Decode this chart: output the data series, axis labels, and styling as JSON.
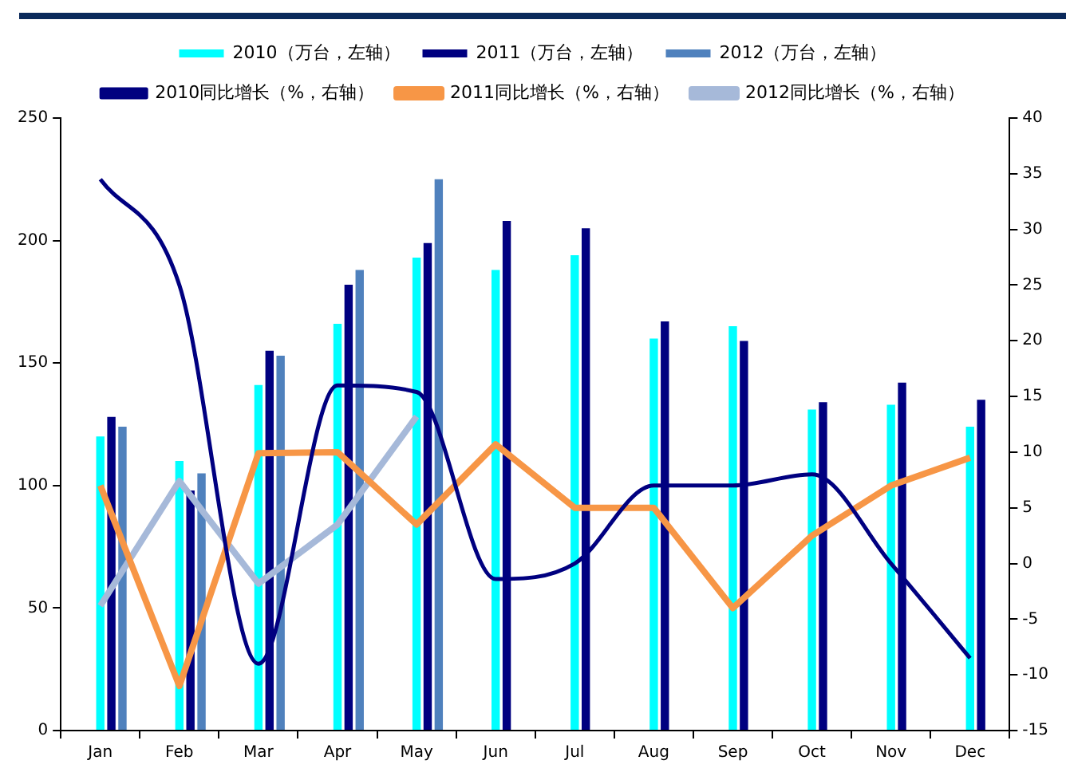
{
  "chart_data": {
    "type": "bar",
    "categories": [
      "Jan",
      "Feb",
      "Mar",
      "Apr",
      "May",
      "Jun",
      "Jul",
      "Aug",
      "Sep",
      "Oct",
      "Nov",
      "Dec"
    ],
    "series": [
      {
        "name": "2010（万台，左轴）",
        "color": "#00ffff",
        "values": [
          120,
          110,
          141,
          166,
          193,
          188,
          194,
          160,
          165,
          131,
          133,
          124
        ]
      },
      {
        "name": "2011（万台，左轴）",
        "color": "#000080",
        "values": [
          128,
          98,
          155,
          182,
          199,
          208,
          205,
          167,
          159,
          134,
          142,
          135
        ]
      },
      {
        "name": "2012（万台，左轴）",
        "color": "#4f81bd",
        "values": [
          124,
          105,
          153,
          188,
          225,
          null,
          null,
          null,
          null,
          null,
          null,
          null
        ]
      },
      {
        "name": "2010同比增长（%，右轴）",
        "type": "line",
        "axis": "y2",
        "color": "#000080",
        "values": [
          34.5,
          25,
          -9,
          16,
          15.4,
          -1.4,
          0,
          7,
          7,
          8,
          0,
          -8.5
        ]
      },
      {
        "name": "2011同比增长（%，右轴）",
        "type": "line",
        "axis": "y2",
        "color": "#f79646",
        "values": [
          7,
          -11,
          9.9,
          10,
          3.5,
          10.7,
          5,
          5,
          -4,
          2.5,
          7,
          9.5
        ]
      },
      {
        "name": "2012同比增长（%，右轴）",
        "type": "line",
        "axis": "y2",
        "color": "#a6b9d9",
        "values": [
          -3.8,
          7.4,
          -1.8,
          3.5,
          13.2,
          null,
          null,
          null,
          null,
          null,
          null,
          null
        ]
      }
    ],
    "ylim": [
      0,
      250
    ],
    "yticks": [
      0,
      50,
      100,
      150,
      200,
      250
    ],
    "y2lim": [
      -15,
      40
    ],
    "y2ticks": [
      -15,
      -10,
      -5,
      0,
      5,
      10,
      15,
      20,
      25,
      30,
      35,
      40
    ],
    "grid": false,
    "legend": "top",
    "marker": "none"
  }
}
